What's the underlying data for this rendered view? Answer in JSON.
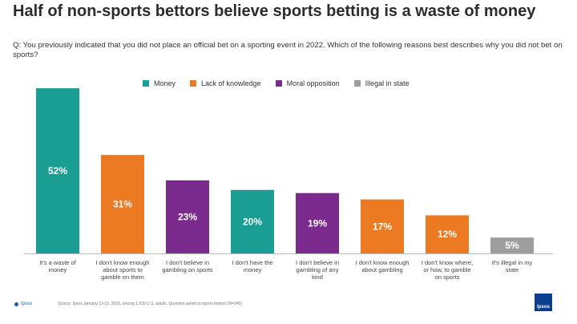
{
  "header": {
    "title": "Half of non-sports bettors believe sports betting is a waste of money",
    "subtitle": "Q: You previously indicated that you did not place an official bet on a sporting event in 2022. Which of the following reasons best describes why you did not bet on sports?"
  },
  "legend": [
    {
      "label": "Money",
      "color": "#1a9e94"
    },
    {
      "label": "Lack of knowledge",
      "color": "#ec7a22"
    },
    {
      "label": "Moral opposition",
      "color": "#7b2a8e"
    },
    {
      "label": "Illegal in state",
      "color": "#9e9e9e"
    }
  ],
  "footer": {
    "logo": "Ipsos",
    "source": "Source: Ipsos January 13-15, 2023, among 1,035 U.S. adults. Question asked to sports bettors (N=945)",
    "badge": "Ipsos"
  },
  "chart_data": {
    "type": "bar",
    "categories": [
      "It's a waste of money",
      "I don't know enough about sports to gamble on them",
      "I don't believe in gambling on sports",
      "I don't have the money",
      "I don't believe in gambling of any kind",
      "I don't know enough about gambling",
      "I don't know where, or how, to gamble on sports",
      "It's illegal in my state"
    ],
    "values": [
      52,
      31,
      23,
      20,
      19,
      17,
      12,
      5
    ],
    "value_labels": [
      "52%",
      "31%",
      "23%",
      "20%",
      "19%",
      "17%",
      "12%",
      "5%"
    ],
    "groups": [
      "Money",
      "Lack of knowledge",
      "Moral opposition",
      "Money",
      "Moral opposition",
      "Lack of knowledge",
      "Lack of knowledge",
      "Illegal in state"
    ],
    "ylim": [
      0,
      52
    ],
    "grid": false,
    "legend_position": "top-center",
    "title": "",
    "xlabel": "",
    "ylabel": ""
  }
}
